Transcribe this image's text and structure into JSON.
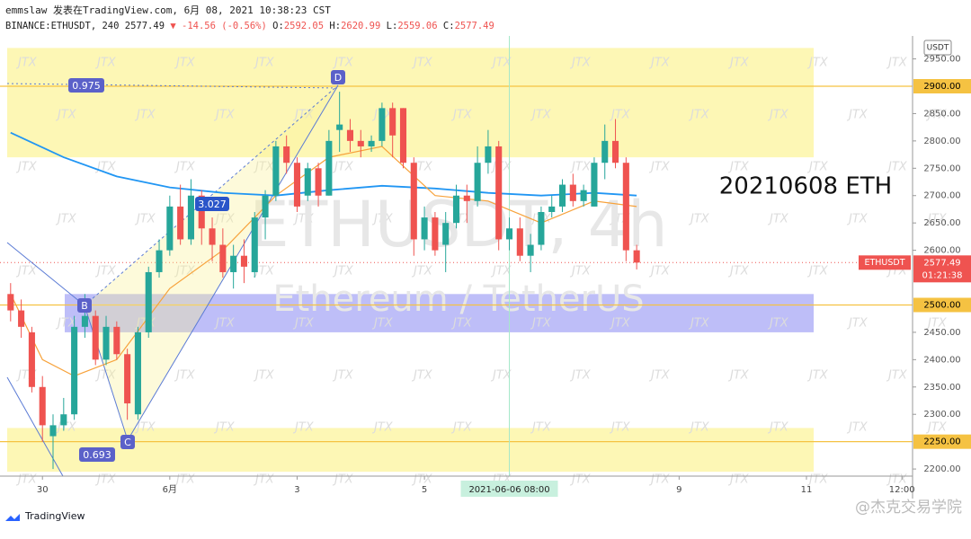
{
  "chart_data": {
    "type": "candlestick",
    "header": {
      "line1": "emmslaw 发表在TradingView.com, 6月 08, 2021 10:38:23 CST",
      "symbol": "BINANCE:ETHUSDT, 240",
      "last": 2577.49,
      "change": "▼ -14.56 (-0.56%)",
      "ohlc": [
        {
          "label": "O:",
          "value": 2592.05
        },
        {
          "label": "H:",
          "value": 2620.99
        },
        {
          "label": "L:",
          "value": 2559.06
        },
        {
          "label": "C:",
          "value": 2577.49
        }
      ]
    },
    "watermark": "ETHUSDT, 4h",
    "watermark_sub": "Ethereum / TetherUS",
    "stamp": "JTX",
    "note": "20210608 ETH",
    "currency": "USDT",
    "up_color": "#26a69a",
    "down_color": "#ef5350",
    "candles": [
      {
        "open": 2520,
        "high": 2540,
        "low": 2470,
        "close": 2490
      },
      {
        "open": 2490,
        "high": 2510,
        "low": 2440,
        "close": 2460
      },
      {
        "open": 2450,
        "high": 2460,
        "low": 2340,
        "close": 2350
      },
      {
        "open": 2350,
        "high": 2370,
        "low": 2250,
        "close": 2280
      },
      {
        "open": 2260,
        "high": 2300,
        "low": 2200,
        "close": 2280
      },
      {
        "open": 2280,
        "high": 2330,
        "low": 2270,
        "close": 2300
      },
      {
        "open": 2300,
        "high": 2480,
        "low": 2290,
        "close": 2460
      },
      {
        "open": 2460,
        "high": 2520,
        "low": 2440,
        "close": 2480
      },
      {
        "open": 2480,
        "high": 2490,
        "low": 2390,
        "close": 2400
      },
      {
        "open": 2400,
        "high": 2480,
        "low": 2390,
        "close": 2460
      },
      {
        "open": 2460,
        "high": 2470,
        "low": 2400,
        "close": 2410
      },
      {
        "open": 2410,
        "high": 2420,
        "low": 2290,
        "close": 2320
      },
      {
        "open": 2300,
        "high": 2460,
        "low": 2290,
        "close": 2450
      },
      {
        "open": 2450,
        "high": 2570,
        "low": 2440,
        "close": 2560
      },
      {
        "open": 2560,
        "high": 2620,
        "low": 2550,
        "close": 2600
      },
      {
        "open": 2600,
        "high": 2700,
        "low": 2590,
        "close": 2680
      },
      {
        "open": 2680,
        "high": 2720,
        "low": 2610,
        "close": 2620
      },
      {
        "open": 2620,
        "high": 2730,
        "low": 2610,
        "close": 2700
      },
      {
        "open": 2700,
        "high": 2710,
        "low": 2610,
        "close": 2640
      },
      {
        "open": 2640,
        "high": 2660,
        "low": 2580,
        "close": 2610
      },
      {
        "open": 2610,
        "high": 2640,
        "low": 2550,
        "close": 2560
      },
      {
        "open": 2560,
        "high": 2610,
        "low": 2530,
        "close": 2590
      },
      {
        "open": 2590,
        "high": 2620,
        "low": 2540,
        "close": 2570
      },
      {
        "open": 2560,
        "high": 2670,
        "low": 2550,
        "close": 2660
      },
      {
        "open": 2660,
        "high": 2710,
        "low": 2620,
        "close": 2700
      },
      {
        "open": 2700,
        "high": 2800,
        "low": 2690,
        "close": 2790
      },
      {
        "open": 2790,
        "high": 2810,
        "low": 2740,
        "close": 2760
      },
      {
        "open": 2760,
        "high": 2770,
        "low": 2670,
        "close": 2680
      },
      {
        "open": 2700,
        "high": 2760,
        "low": 2690,
        "close": 2750
      },
      {
        "open": 2750,
        "high": 2760,
        "low": 2680,
        "close": 2700
      },
      {
        "open": 2700,
        "high": 2820,
        "low": 2700,
        "close": 2800
      },
      {
        "open": 2820,
        "high": 2890,
        "low": 2780,
        "close": 2830
      },
      {
        "open": 2820,
        "high": 2840,
        "low": 2780,
        "close": 2800
      },
      {
        "open": 2800,
        "high": 2820,
        "low": 2770,
        "close": 2790
      },
      {
        "open": 2790,
        "high": 2810,
        "low": 2780,
        "close": 2800
      },
      {
        "open": 2800,
        "high": 2870,
        "low": 2790,
        "close": 2860
      },
      {
        "open": 2860,
        "high": 2870,
        "low": 2770,
        "close": 2810
      },
      {
        "open": 2860,
        "high": 2860,
        "low": 2750,
        "close": 2760
      },
      {
        "open": 2760,
        "high": 2770,
        "low": 2590,
        "close": 2620
      },
      {
        "open": 2620,
        "high": 2680,
        "low": 2600,
        "close": 2660
      },
      {
        "open": 2660,
        "high": 2670,
        "low": 2590,
        "close": 2600
      },
      {
        "open": 2610,
        "high": 2670,
        "low": 2560,
        "close": 2650
      },
      {
        "open": 2650,
        "high": 2720,
        "low": 2640,
        "close": 2700
      },
      {
        "open": 2700,
        "high": 2720,
        "low": 2650,
        "close": 2690
      },
      {
        "open": 2690,
        "high": 2790,
        "low": 2680,
        "close": 2760
      },
      {
        "open": 2760,
        "high": 2820,
        "low": 2740,
        "close": 2790
      },
      {
        "open": 2790,
        "high": 2800,
        "low": 2600,
        "close": 2620
      },
      {
        "open": 2620,
        "high": 2660,
        "low": 2600,
        "close": 2640
      },
      {
        "open": 2640,
        "high": 2660,
        "low": 2580,
        "close": 2590
      },
      {
        "open": 2590,
        "high": 2630,
        "low": 2560,
        "close": 2610
      },
      {
        "open": 2610,
        "high": 2680,
        "low": 2600,
        "close": 2670
      },
      {
        "open": 2670,
        "high": 2700,
        "low": 2660,
        "close": 2680
      },
      {
        "open": 2680,
        "high": 2730,
        "low": 2670,
        "close": 2720
      },
      {
        "open": 2720,
        "high": 2740,
        "low": 2680,
        "close": 2690
      },
      {
        "open": 2690,
        "high": 2720,
        "low": 2680,
        "close": 2710
      },
      {
        "open": 2680,
        "high": 2770,
        "low": 2680,
        "close": 2760
      },
      {
        "open": 2760,
        "high": 2830,
        "low": 2730,
        "close": 2800
      },
      {
        "open": 2800,
        "high": 2840,
        "low": 2750,
        "close": 2760
      },
      {
        "open": 2760,
        "high": 2770,
        "low": 2580,
        "close": 2600
      },
      {
        "open": 2600,
        "high": 2610,
        "low": 2565,
        "close": 2577.49
      }
    ],
    "series": [
      {
        "color": "#2196f3",
        "x": [
          0,
          5,
          10,
          15,
          20,
          25,
          30,
          35,
          40,
          45,
          50,
          55,
          59
        ],
        "values": [
          2815,
          2770,
          2735,
          2715,
          2705,
          2700,
          2710,
          2718,
          2713,
          2705,
          2700,
          2705,
          2700
        ]
      },
      {
        "color": "#f7a23b",
        "x": [
          0,
          3,
          6,
          10,
          15,
          20,
          25,
          30,
          35,
          40,
          45,
          50,
          55,
          59
        ],
        "values": [
          2520,
          2400,
          2370,
          2400,
          2530,
          2600,
          2700,
          2770,
          2790,
          2700,
          2690,
          2650,
          2690,
          2680
        ]
      }
    ],
    "zones": [
      {
        "from": 2770,
        "to": 2970,
        "color": "#fdf6a8"
      },
      {
        "from": 2450,
        "to": 2520,
        "color": "#b3b3f7"
      },
      {
        "from": 2195,
        "to": 2275,
        "color": "#fdf6a8"
      }
    ],
    "levels": [
      {
        "value": 2900,
        "label": "2900.00"
      },
      {
        "value": 2500,
        "label": "2500.00"
      },
      {
        "value": 2250,
        "label": "2250.00"
      }
    ],
    "level_color": "#f5c242",
    "last_tag": {
      "symbol": "ETHUSDT",
      "value": 2577.49,
      "countdown": "01:21:38"
    },
    "ylim": [
      2187,
      2992
    ],
    "yticks": [
      {
        "value": 2950,
        "label": "2950.00"
      },
      {
        "value": 2850,
        "label": "2850.00"
      },
      {
        "value": 2800,
        "label": "2800.00"
      },
      {
        "value": 2750,
        "label": "2750.00"
      },
      {
        "value": 2700,
        "label": "2700.00"
      },
      {
        "value": 2650,
        "label": "2650.00"
      },
      {
        "value": 2600,
        "label": "2600.00"
      },
      {
        "value": 2450,
        "label": "2450.00"
      },
      {
        "value": 2400,
        "label": "2400.00"
      },
      {
        "value": 2350,
        "label": "2350.00"
      },
      {
        "value": 2300,
        "label": "2300.00"
      },
      {
        "value": 2200,
        "label": "2200.00"
      }
    ],
    "xlim": [
      -1,
      85
    ],
    "xticks": [
      {
        "value": 3,
        "label": "30"
      },
      {
        "value": 15,
        "label": "6月"
      },
      {
        "value": 27,
        "label": "3"
      },
      {
        "value": 39,
        "label": "5"
      },
      {
        "value": 63,
        "label": "9"
      },
      {
        "value": 75,
        "label": "11"
      },
      {
        "value": 84,
        "label": "12:00"
      }
    ],
    "crosshair": {
      "value": 47,
      "label": "2021-06-06   08:00"
    },
    "annotations": {
      "b": "B",
      "c": "C",
      "d": "D",
      "r1": "0.975",
      "r2": "3.027",
      "r3": "0.693"
    },
    "footer": {
      "brand": "TradingView",
      "credit": "@杰克交易学院"
    }
  }
}
